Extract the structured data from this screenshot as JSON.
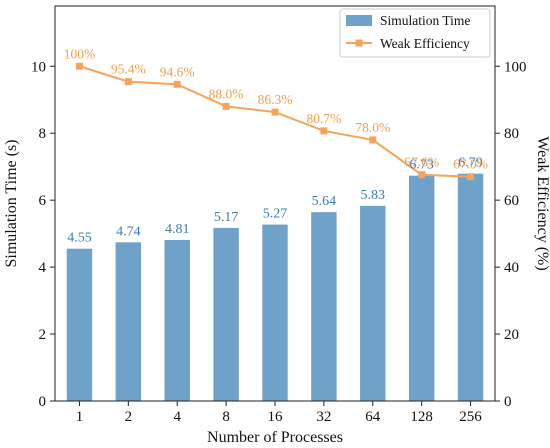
{
  "chart_data": {
    "type": "bar",
    "categories": [
      "1",
      "2",
      "4",
      "8",
      "16",
      "32",
      "64",
      "128",
      "256"
    ],
    "xlabel": "Number of Processes",
    "ylabel": "Simulation Time (s)",
    "ylabel_right": "Weak Efficiency (%)",
    "ylim": [
      0,
      11.8
    ],
    "ylim_right": [
      0,
      118
    ],
    "yticks": [
      "0",
      "2",
      "4",
      "6",
      "8",
      "10"
    ],
    "yticks_right": [
      "0",
      "20",
      "40",
      "60",
      "80",
      "100"
    ],
    "legend_position": "top-right",
    "grid": false,
    "series": [
      {
        "name": "Simulation Time",
        "type": "bar",
        "axis": "left",
        "color": "#6fa2c9",
        "values": [
          4.55,
          4.74,
          4.81,
          5.17,
          5.27,
          5.64,
          5.83,
          6.73,
          6.79
        ],
        "labels": [
          "4.55",
          "4.74",
          "4.81",
          "5.17",
          "5.27",
          "5.64",
          "5.83",
          "6.73",
          "6.79"
        ]
      },
      {
        "name": "Weak Efficiency",
        "type": "line",
        "axis": "right",
        "color": "#f5a55a",
        "marker": "square",
        "values": [
          100,
          95.4,
          94.6,
          88.0,
          86.3,
          80.7,
          78.0,
          67.6,
          67.0
        ],
        "labels": [
          "100%",
          "95.4%",
          "94.6%",
          "88.0%",
          "86.3%",
          "80.7%",
          "78.0%",
          "67.6%",
          "67.0%"
        ]
      }
    ]
  }
}
